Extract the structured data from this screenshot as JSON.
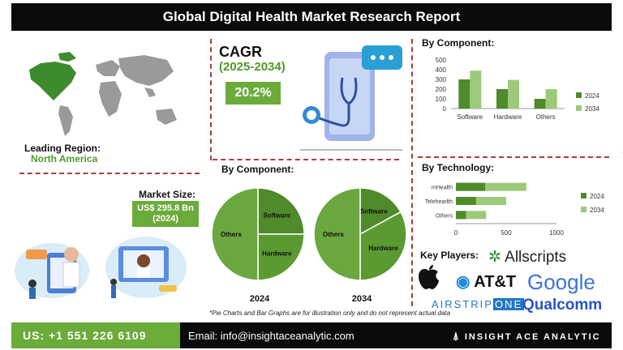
{
  "header": {
    "title": "Global Digital Health Market Research Report"
  },
  "region": {
    "label": "Leading Region:",
    "value": "North America"
  },
  "cagr": {
    "label": "CAGR",
    "period": "(2025-2034)",
    "value": "20.2%"
  },
  "market_size": {
    "label": "Market Size:",
    "value": "US$ 295.8 Bn",
    "year": "(2024)"
  },
  "pie_section": {
    "title": "By Component:",
    "year_a": "2024",
    "year_b": "2034"
  },
  "key_players": {
    "label": "Key Players:",
    "names": [
      "Allscripts",
      "AT&T",
      "Google",
      "AIRSTRIP",
      "ONE",
      "Qualcomm"
    ]
  },
  "note": "*Pie Charts and Bar Graphs are for illustration only and do not represent actual data",
  "footer": {
    "phone": "US: +1 551 226 6109",
    "email": "Email: info@insightaceanalytic.com",
    "brand": "INSIGHT ACE ANALYTIC"
  },
  "colors": {
    "dark_green": "#4f8a2b",
    "light_green": "#9cc97a",
    "accent": "#6bab3a",
    "divider": "#b23a3a"
  },
  "chart_data": [
    {
      "type": "bar",
      "title": "By Component:",
      "categories": [
        "Software",
        "Hardware",
        "Others"
      ],
      "series": [
        {
          "name": "2024",
          "values": [
            300,
            200,
            100
          ]
        },
        {
          "name": "2034",
          "values": [
            390,
            295,
            200
          ]
        }
      ],
      "ylim": [
        0,
        500
      ],
      "yticks": [
        "0",
        "100",
        "200",
        "300",
        "400",
        "500"
      ],
      "legend": "right"
    },
    {
      "type": "bar",
      "orientation": "horizontal",
      "title": "By Technology:",
      "categories": [
        "mHealth",
        "Telehearlth",
        "Others"
      ],
      "series": [
        {
          "name": "2024",
          "values": [
            290,
            200,
            100
          ]
        },
        {
          "name": "2034",
          "values": [
            700,
            500,
            300
          ]
        }
      ],
      "xlim": [
        0,
        1000
      ],
      "xticks": [
        "0",
        "500",
        "1000"
      ],
      "legend": "right"
    },
    {
      "type": "pie",
      "year": "2024",
      "labels": [
        "Software",
        "Hardware",
        "Others"
      ],
      "values": [
        25,
        25,
        50
      ]
    },
    {
      "type": "pie",
      "year": "2034",
      "labels": [
        "Software",
        "Hardware",
        "Others"
      ],
      "values": [
        17,
        33,
        50
      ]
    }
  ]
}
